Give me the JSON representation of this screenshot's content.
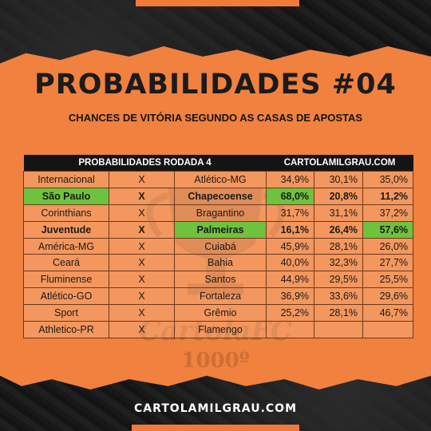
{
  "title": "PROBABILIDADES #04",
  "subtitle": "CHANCES DE VITÓRIA SEGUNDO AS CASAS DE APOSTAS",
  "table": {
    "header_left": "PROBABILIDADES RODADA 4",
    "header_right": "CARTOLAMILGRAU.COM",
    "rows": [
      {
        "home": "Internacional",
        "x": "X",
        "away": "Atlético-MG",
        "p1": "34,9%",
        "p2": "30,1%",
        "p3": "35,0%"
      },
      {
        "home": "São Paulo",
        "x": "X",
        "away": "Chapecoense",
        "p1": "68,0%",
        "p2": "20,8%",
        "p3": "11,2%"
      },
      {
        "home": "Corinthians",
        "x": "X",
        "away": "Bragantino",
        "p1": "31,7%",
        "p2": "31,1%",
        "p3": "37,2%"
      },
      {
        "home": "Juventude",
        "x": "X",
        "away": "Palmeiras",
        "p1": "16,1%",
        "p2": "26,4%",
        "p3": "57,6%"
      },
      {
        "home": "América-MG",
        "x": "X",
        "away": "Cuiabá",
        "p1": "45,9%",
        "p2": "28,1%",
        "p3": "26,0%"
      },
      {
        "home": "Ceará",
        "x": "X",
        "away": "Bahia",
        "p1": "40,0%",
        "p2": "32,3%",
        "p3": "27,7%"
      },
      {
        "home": "Fluminense",
        "x": "X",
        "away": "Santos",
        "p1": "44,9%",
        "p2": "29,5%",
        "p3": "25,5%"
      },
      {
        "home": "Atlético-GO",
        "x": "X",
        "away": "Fortaleza",
        "p1": "36,9%",
        "p2": "33,6%",
        "p3": "29,6%"
      },
      {
        "home": "Sport",
        "x": "X",
        "away": "Grêmio",
        "p1": "25,2%",
        "p2": "28,1%",
        "p3": "46,7%"
      },
      {
        "home": "Athletico-PR",
        "x": "X",
        "away": "Flamengo",
        "p1": "",
        "p2": "",
        "p3": ""
      }
    ]
  },
  "watermark": {
    "brand": "CartolaFC",
    "number": "1000º"
  },
  "footer": "CARTOLAMILGRAU.COM",
  "colors": {
    "accent": "#f0813f",
    "highlight": "#6fc23e",
    "background": "#161616"
  }
}
